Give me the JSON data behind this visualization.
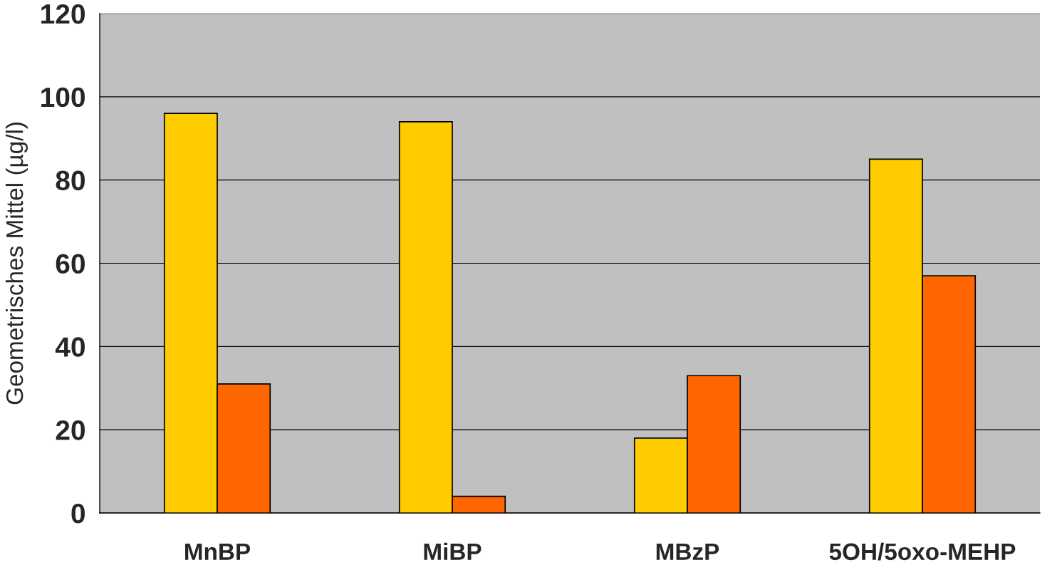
{
  "chart_data": {
    "type": "bar",
    "ylabel": "Geometrisches Mittel (µg/l)",
    "categories": [
      "MnBP",
      "MiBP",
      "MBzP",
      "5OH/5oxo-MEHP"
    ],
    "series": [
      {
        "color": "#ffcc00",
        "values": [
          96,
          94,
          18,
          85
        ]
      },
      {
        "color": "#ff6600",
        "values": [
          31,
          4,
          33,
          57
        ]
      }
    ],
    "ylim": [
      0,
      120
    ],
    "yticks": [
      0,
      20,
      40,
      60,
      80,
      100,
      120
    ],
    "grid": "y",
    "legend": false
  }
}
